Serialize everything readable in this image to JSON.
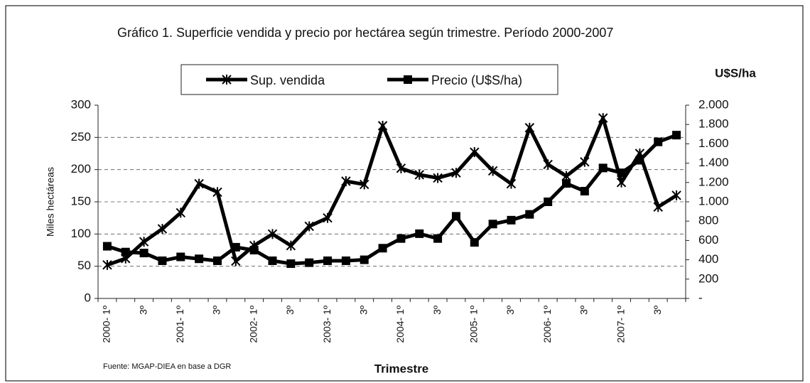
{
  "chart_data": {
    "type": "line",
    "title": "Gráfico 1. Superficie vendida y precio por hectárea según trimestre. Período 2000-2007",
    "x_label": "Trimestre",
    "y_label": "Miles hectáreas",
    "y2_label": "U$S/ha",
    "source": "Fuente: MGAP-DIEA en base a DGR",
    "categories": [
      "2000- 1º",
      null,
      "3º",
      null,
      "2001- 1º",
      null,
      "3º",
      null,
      "2002- 1º",
      null,
      "3º",
      null,
      "2003- 1º",
      null,
      "3º",
      null,
      "2004- 1º",
      null,
      "3º",
      null,
      "2005- 1º",
      null,
      "3º",
      null,
      "2006- 1º",
      null,
      "3º",
      null,
      "2007- 1º",
      null,
      "3º",
      null
    ],
    "series": [
      {
        "name": "Sup. vendida",
        "color": "#000000",
        "marker": "asterisk",
        "values": [
          52,
          62,
          88,
          108,
          133,
          178,
          165,
          58,
          82,
          100,
          82,
          112,
          125,
          182,
          177,
          268,
          202,
          192,
          187,
          195,
          227,
          198,
          178,
          265,
          208,
          190,
          212,
          280,
          180,
          225,
          142,
          160
        ]
      },
      {
        "name": "Precio (U$S/ha)",
        "color": "#000000",
        "marker": "square",
        "axis": "y2",
        "values": [
          540,
          480,
          470,
          390,
          430,
          410,
          390,
          530,
          500,
          390,
          360,
          370,
          390,
          390,
          400,
          520,
          620,
          670,
          620,
          850,
          580,
          770,
          810,
          870,
          1000,
          1190,
          1110,
          1350,
          1300,
          1430,
          1620,
          1690
        ]
      }
    ],
    "ylim": [
      0,
      300
    ],
    "yticks": [
      0,
      50,
      100,
      150,
      200,
      250,
      300
    ],
    "y2lim": [
      0,
      2000
    ],
    "y2ticks": [
      {
        "value": 0,
        "label": "-"
      },
      200,
      400,
      600,
      800,
      {
        "value": 1000,
        "label": "1.000"
      },
      {
        "value": 1200,
        "label": "1.200"
      },
      {
        "value": 1400,
        "label": "1.400"
      },
      {
        "value": 1600,
        "label": "1.600"
      },
      {
        "value": 1800,
        "label": "1.800"
      },
      {
        "value": 2000,
        "label": "2.000"
      }
    ],
    "grid": true,
    "legend": "top"
  }
}
